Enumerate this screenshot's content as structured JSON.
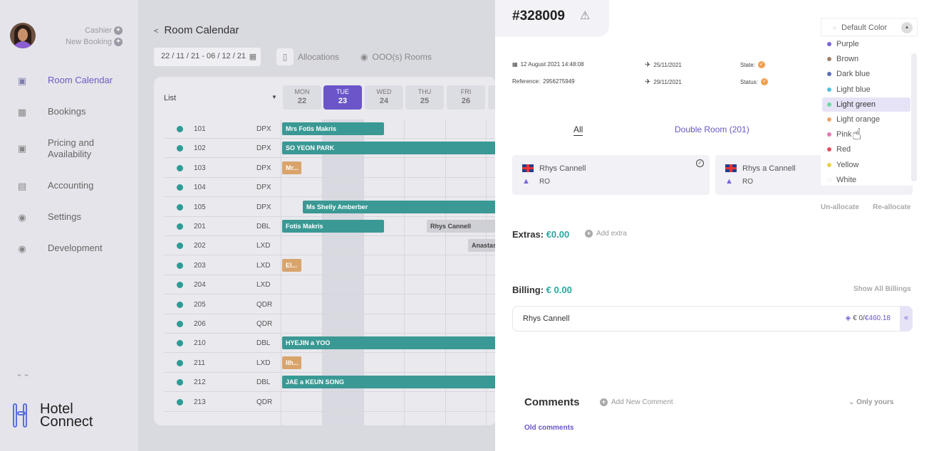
{
  "sidebar": {
    "user_role": "Cashier",
    "new_booking": "New Booking",
    "items": [
      {
        "label": "Room Calendar",
        "icon": "bus-icon",
        "active": true
      },
      {
        "label": "Bookings",
        "icon": "receipt-icon"
      },
      {
        "label": "Pricing and Availability",
        "icon": "bus-icon"
      },
      {
        "label": "Accounting",
        "icon": "card-icon"
      },
      {
        "label": "Settings",
        "icon": "gear-icon"
      },
      {
        "label": "Development",
        "icon": "gear-icon"
      }
    ],
    "logo_line1": "Hotel",
    "logo_line2": "Connect"
  },
  "calendar": {
    "title": "Room Calendar",
    "date_range": "22 / 11 / 21  -  06 / 12 / 21",
    "allocations": "Allocations",
    "ooo_rooms": "OOO(s) Rooms",
    "list_label": "List",
    "days": [
      {
        "name": "MON",
        "date": "22"
      },
      {
        "name": "TUE",
        "date": "23",
        "today": true
      },
      {
        "name": "WED",
        "date": "24"
      },
      {
        "name": "THU",
        "date": "25"
      },
      {
        "name": "FRI",
        "date": "26"
      }
    ],
    "rooms": [
      {
        "num": "101",
        "type": "DPX"
      },
      {
        "num": "102",
        "type": "DPX"
      },
      {
        "num": "103",
        "type": "DPX"
      },
      {
        "num": "104",
        "type": "DPX"
      },
      {
        "num": "105",
        "type": "DPX"
      },
      {
        "num": "201",
        "type": "DBL"
      },
      {
        "num": "202",
        "type": "LXD"
      },
      {
        "num": "203",
        "type": "LXD"
      },
      {
        "num": "204",
        "type": "LXD"
      },
      {
        "num": "205",
        "type": "QDR"
      },
      {
        "num": "206",
        "type": "QDR"
      },
      {
        "num": "210",
        "type": "DBL"
      },
      {
        "num": "211",
        "type": "LXD"
      },
      {
        "num": "212",
        "type": "DBL"
      },
      {
        "num": "213",
        "type": "QDR"
      }
    ],
    "bookings": [
      {
        "row": 0,
        "label": "Mrs Fotis Makris",
        "color": "teal",
        "from": 0,
        "to": 2.5
      },
      {
        "row": 1,
        "label": "SO YEON PARK",
        "color": "teal",
        "from": 0,
        "to": 6
      },
      {
        "row": 2,
        "label": "Mr...",
        "color": "tan",
        "from": 0,
        "to": 0.5
      },
      {
        "row": 4,
        "label": "Ms Shelly Amberber",
        "color": "teal",
        "from": 0.5,
        "to": 6
      },
      {
        "row": 5,
        "label": "Fotis Makris",
        "color": "teal",
        "from": 0,
        "to": 2.5
      },
      {
        "row": 5,
        "label": "Rhys Cannell",
        "color": "grey",
        "from": 3.5,
        "to": 6
      },
      {
        "row": 6,
        "label": "Anastas...",
        "color": "grey",
        "from": 4.5,
        "to": 6
      },
      {
        "row": 7,
        "label": "El...",
        "color": "tan",
        "from": 0,
        "to": 0.5
      },
      {
        "row": 11,
        "label": "HYEJIN a YOO",
        "color": "teal",
        "from": 0,
        "to": 6
      },
      {
        "row": 12,
        "label": "Ilh...",
        "color": "tan",
        "from": 0,
        "to": 0.5
      },
      {
        "row": 13,
        "label": "JAE a KEUN SONG",
        "color": "teal",
        "from": 0,
        "to": 6
      }
    ]
  },
  "reservation": {
    "id": "#328009",
    "created": "12 August 2021 14:48:08",
    "reference_label": "Reference:",
    "reference": "2956275949",
    "arrival": "25/11/2021",
    "departure": "29/11/2021",
    "state_label": "State:",
    "status_label": "Status:",
    "filter_all": "All",
    "filter_room": "Double Room (201)",
    "guests": [
      {
        "name": "Rhys Cannell",
        "code": "RO"
      },
      {
        "name": "Rhys a Cannell",
        "code": "RO"
      }
    ],
    "unallocate": "Un-allocate",
    "reallocate": "Re-allocate",
    "extras_label": "Extras:",
    "extras_value": "€0.00",
    "add_extra": "Add extra",
    "billing_label": "Billing:",
    "billing_value": "€ 0.00",
    "show_all_billings": "Show All Billings",
    "billing_name": "Rhys Cannell",
    "billing_paid": "€ 0/",
    "billing_total": "€460.18",
    "comments_label": "Comments",
    "add_comment": "Add New Comment",
    "only_yours": "Only yours",
    "old_comments": "Old comments"
  },
  "color_dropdown": {
    "selected_header": "Default Color",
    "options": [
      {
        "label": "Purple",
        "color": "#7c63d6"
      },
      {
        "label": "Brown",
        "color": "#a0826d"
      },
      {
        "label": "Dark blue",
        "color": "#5b6fb8"
      },
      {
        "label": "Light blue",
        "color": "#4fc3d9"
      },
      {
        "label": "Light green",
        "color": "#6fd6a0",
        "highlighted": true
      },
      {
        "label": "Light orange",
        "color": "#e8a86c"
      },
      {
        "label": "Pink",
        "color": "#e07bb0"
      },
      {
        "label": "Red",
        "color": "#e05060"
      },
      {
        "label": "Yellow",
        "color": "#e8d04a"
      },
      {
        "label": "White",
        "color": "#ffffff"
      }
    ]
  }
}
